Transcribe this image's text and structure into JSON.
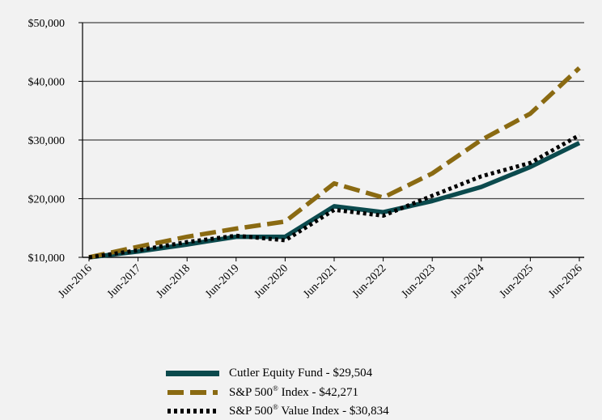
{
  "chart_data": {
    "type": "line",
    "title": "",
    "xlabel": "",
    "ylabel": "",
    "categories": [
      "Jun-2016",
      "Jun-2017",
      "Jun-2018",
      "Jun-2019",
      "Jun-2020",
      "Jun-2021",
      "Jun-2022",
      "Jun-2023",
      "Jun-2024",
      "Jun-2025",
      "Jun-2026"
    ],
    "y_ticks": [
      "$10,000",
      "$20,000",
      "$30,000",
      "$40,000",
      "$50,000"
    ],
    "y_tick_values": [
      10000,
      20000,
      30000,
      40000,
      50000
    ],
    "ylim": [
      10000,
      50000
    ],
    "grid": "horizontal",
    "legend_position": "bottom",
    "series": [
      {
        "name": "Cutler Equity Fund - $29,504",
        "color": "#0b4a4d",
        "style": "solid",
        "values": [
          10000,
          11000,
          12200,
          13500,
          13500,
          18700,
          17700,
          19600,
          22000,
          25400,
          29504
        ]
      },
      {
        "name": "S&P 500® Index - $42,271",
        "color": "#8a6a12",
        "style": "dashed",
        "values": [
          10000,
          11800,
          13500,
          14900,
          16100,
          22600,
          20200,
          24300,
          30000,
          34500,
          42271
        ]
      },
      {
        "name": "S&P 500® Value Index - $30,834",
        "color": "#000000",
        "style": "dotted",
        "values": [
          10000,
          11200,
          12600,
          13700,
          12900,
          18100,
          17100,
          20500,
          23800,
          26100,
          30834
        ]
      }
    ],
    "legend": {
      "fund": {
        "text": "Cutler Equity Fund - $29,504"
      },
      "sp500": {
        "pre": "S&P 500",
        "sup": "®",
        "post": " Index - $42,271"
      },
      "value": {
        "pre": "S&P 500",
        "sup": "®",
        "post": " Value Index - $30,834"
      }
    }
  }
}
